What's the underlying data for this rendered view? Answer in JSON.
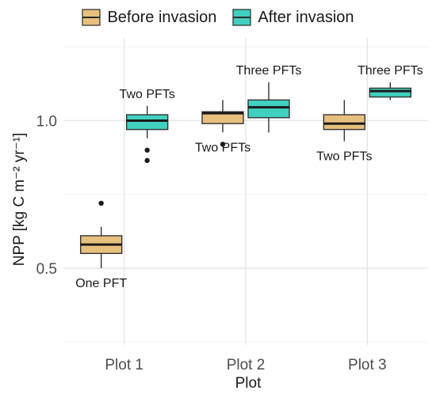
{
  "chart_data": {
    "type": "box",
    "xlabel": "Plot",
    "ylabel": "NPP [kg C m⁻² yr⁻¹]",
    "categories": [
      "Plot 1",
      "Plot 2",
      "Plot 3"
    ],
    "ylim": [
      0.24,
      1.28
    ],
    "yticks": [
      0.5,
      1.0
    ],
    "ytick_labels": [
      "0.5",
      "1.0"
    ],
    "grid": true,
    "legend_position": "top",
    "series": [
      {
        "name": "Before invasion",
        "color": "#E8C07D",
        "boxes": [
          {
            "category": "Plot 1",
            "whisker_low": 0.5,
            "q1": 0.55,
            "median": 0.58,
            "q3": 0.61,
            "whisker_high": 0.64,
            "outliers": [
              0.72
            ],
            "annotation": "One PFT",
            "annotation_side": "below"
          },
          {
            "category": "Plot 2",
            "whisker_low": 0.96,
            "q1": 0.99,
            "median": 1.025,
            "q3": 1.03,
            "whisker_high": 1.07,
            "outliers": [
              0.92
            ],
            "annotation": "Two PFTs",
            "annotation_side": "below"
          },
          {
            "category": "Plot 3",
            "whisker_low": 0.93,
            "q1": 0.97,
            "median": 0.99,
            "q3": 1.02,
            "whisker_high": 1.07,
            "outliers": [],
            "annotation": "Two PFTs",
            "annotation_side": "below"
          }
        ]
      },
      {
        "name": "After invasion",
        "color": "#40D0C0",
        "boxes": [
          {
            "category": "Plot 1",
            "whisker_low": 0.94,
            "q1": 0.97,
            "median": 1.0,
            "q3": 1.02,
            "whisker_high": 1.05,
            "outliers": [
              0.9,
              0.865
            ],
            "annotation": "Two PFTs",
            "annotation_side": "above"
          },
          {
            "category": "Plot 2",
            "whisker_low": 0.96,
            "q1": 1.01,
            "median": 1.045,
            "q3": 1.07,
            "whisker_high": 1.13,
            "outliers": [],
            "annotation": "Three PFTs",
            "annotation_side": "above"
          },
          {
            "category": "Plot 3",
            "whisker_low": 1.07,
            "q1": 1.08,
            "median": 1.1,
            "q3": 1.11,
            "whisker_high": 1.13,
            "outliers": [],
            "annotation": "Three PFTs",
            "annotation_side": "above"
          }
        ]
      }
    ]
  }
}
